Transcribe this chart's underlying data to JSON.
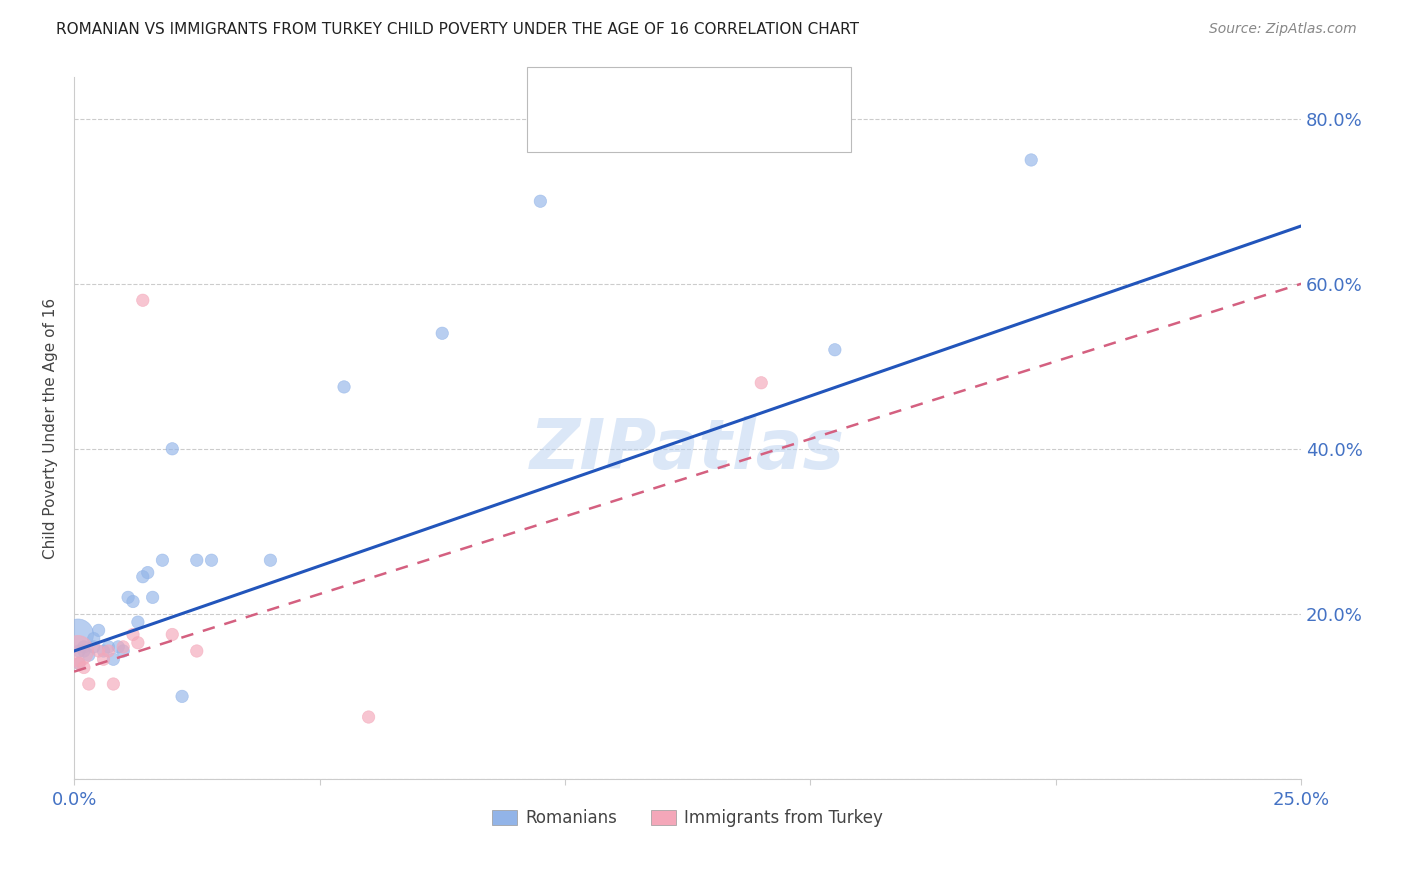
{
  "title": "ROMANIAN VS IMMIGRANTS FROM TURKEY CHILD POVERTY UNDER THE AGE OF 16 CORRELATION CHART",
  "source": "Source: ZipAtlas.com",
  "ylabel_label": "Child Poverty Under the Age of 16",
  "xlim": [
    0.0,
    0.25
  ],
  "ylim": [
    0.0,
    0.85
  ],
  "xticks": [
    0.0,
    0.05,
    0.1,
    0.15,
    0.2,
    0.25
  ],
  "yticks": [
    0.0,
    0.2,
    0.4,
    0.6,
    0.8
  ],
  "ytick_labels_right": [
    "",
    "20.0%",
    "40.0%",
    "60.0%",
    "80.0%"
  ],
  "xtick_labels": [
    "0.0%",
    "",
    "",
    "",
    "",
    "25.0%"
  ],
  "axis_color": "#4472c4",
  "blue_scatter_color": "#92b4e8",
  "pink_scatter_color": "#f4a7b9",
  "blue_line_color": "#2255bb",
  "pink_line_color": "#d46080",
  "watermark": "ZIPatlas",
  "romanians_x": [
    0.0008,
    0.001,
    0.001,
    0.002,
    0.002,
    0.003,
    0.004,
    0.004,
    0.005,
    0.006,
    0.007,
    0.008,
    0.009,
    0.01,
    0.011,
    0.012,
    0.013,
    0.014,
    0.015,
    0.016,
    0.018,
    0.02,
    0.022,
    0.025,
    0.028,
    0.04,
    0.055,
    0.075,
    0.095,
    0.155,
    0.195
  ],
  "romanians_y": [
    0.175,
    0.155,
    0.14,
    0.16,
    0.155,
    0.15,
    0.17,
    0.16,
    0.18,
    0.155,
    0.16,
    0.145,
    0.16,
    0.155,
    0.22,
    0.215,
    0.19,
    0.245,
    0.25,
    0.22,
    0.265,
    0.4,
    0.1,
    0.265,
    0.265,
    0.265,
    0.475,
    0.54,
    0.7,
    0.52,
    0.75
  ],
  "romanians_size": [
    500,
    80,
    80,
    80,
    80,
    80,
    80,
    80,
    80,
    80,
    80,
    80,
    80,
    80,
    80,
    80,
    80,
    80,
    80,
    80,
    80,
    80,
    80,
    80,
    80,
    80,
    80,
    80,
    80,
    80,
    80
  ],
  "turkey_x": [
    0.0008,
    0.001,
    0.002,
    0.003,
    0.005,
    0.006,
    0.007,
    0.008,
    0.01,
    0.012,
    0.013,
    0.014,
    0.02,
    0.025,
    0.06,
    0.14
  ],
  "turkey_y": [
    0.155,
    0.14,
    0.135,
    0.115,
    0.155,
    0.145,
    0.155,
    0.115,
    0.16,
    0.175,
    0.165,
    0.58,
    0.175,
    0.155,
    0.075,
    0.48
  ],
  "turkey_size": [
    500,
    80,
    80,
    80,
    80,
    80,
    80,
    80,
    80,
    80,
    80,
    80,
    80,
    80,
    80,
    80
  ],
  "blue_line_x0": 0.0,
  "blue_line_y0": 0.155,
  "blue_line_x1": 0.25,
  "blue_line_y1": 0.67,
  "pink_line_x0": 0.0,
  "pink_line_y0": 0.13,
  "pink_line_x1": 0.25,
  "pink_line_y1": 0.6
}
